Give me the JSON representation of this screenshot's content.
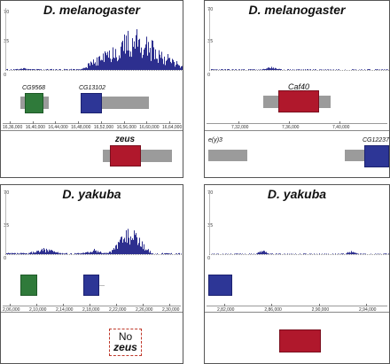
{
  "panels": {
    "top_left": {
      "title": "D. melanogaster",
      "y_max": "70",
      "y_mid": "35",
      "y_zero": "0",
      "genes": {
        "g1": "CG9568",
        "g2": "CG13102"
      },
      "target": "zeus",
      "scale_labels": [
        "16,36,000",
        "16,40,000",
        "16,44,000",
        "16,48,000",
        "16,52,000",
        "16,56,000",
        "16,60,000",
        "16,64,000"
      ]
    },
    "top_right": {
      "title": "D. melanogaster",
      "y_max": "70",
      "y_mid": "35",
      "y_zero": "0",
      "genes": {
        "g1": "Caf40",
        "g2": "e(y)3",
        "g3": "CG12237"
      },
      "scale_labels": [
        "7,32,000",
        "7,36,000",
        "7,40,000"
      ]
    },
    "bottom_left": {
      "title": "D. yakuba",
      "y_max": "70",
      "y_mid": "35",
      "y_zero": "0",
      "missing_line1": "No",
      "missing_line2": "zeus",
      "scale_labels": [
        "2,06,000",
        "2,10,000",
        "2,14,000",
        "2,18,000",
        "2,22,000",
        "2,26,000",
        "2,30,000"
      ]
    },
    "bottom_right": {
      "title": "D. yakuba",
      "y_max": "70",
      "y_mid": "35",
      "y_zero": "0",
      "scale_labels": [
        "2,82,000",
        "2,86,000",
        "2,90,000",
        "2,94,000"
      ]
    }
  },
  "colors": {
    "signal": "#2d2f8f",
    "green_gene": "#2f7a3a",
    "blue_gene": "#2d3696",
    "red_gene": "#b0182c",
    "gray_gene": "#9b9b9b"
  }
}
